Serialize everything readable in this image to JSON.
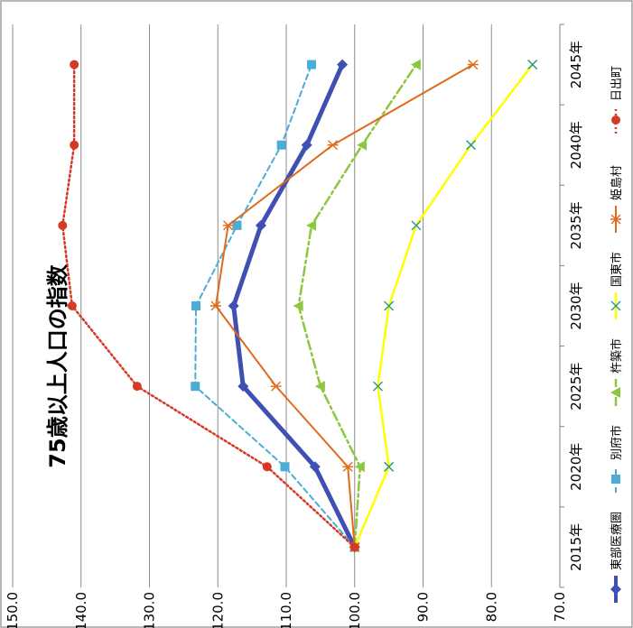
{
  "chart_data": {
    "type": "line",
    "title": "75歳以上人口の指数",
    "categories": [
      "2015年",
      "2020年",
      "2025年",
      "2030年",
      "2035年",
      "2040年",
      "2045年"
    ],
    "ylim": [
      70,
      150
    ],
    "yticks": [
      "70.0",
      "80.0",
      "90.0",
      "100.0",
      "110.0",
      "120.0",
      "130.0",
      "140.0",
      "150.0"
    ],
    "grid": true,
    "legend_position": "bottom",
    "series": [
      {
        "name": "東部医療圏",
        "values": [
          100.0,
          105.8,
          116.3,
          117.7,
          113.7,
          107.0,
          101.8
        ],
        "color": "#3f4fb2",
        "dash": "",
        "width": 5,
        "marker": "diamond"
      },
      {
        "name": "別府市",
        "values": [
          100.0,
          110.2,
          123.3,
          123.2,
          117.2,
          110.7,
          106.3
        ],
        "color": "#4bacd6",
        "dash": "6 4",
        "width": 2,
        "marker": "square"
      },
      {
        "name": "杵築市",
        "values": [
          100.0,
          99.2,
          105.0,
          108.2,
          106.3,
          98.9,
          91.0
        ],
        "color": "#8dc63f",
        "dash": "10 4 3 4",
        "width": 2.5,
        "marker": "triangle"
      },
      {
        "name": "国東市",
        "values": [
          100.0,
          95.0,
          96.6,
          95.0,
          91.0,
          83.0,
          74.0
        ],
        "color": "#ffff00",
        "dash": "",
        "width": 2.5,
        "marker": "x"
      },
      {
        "name": "姫島村",
        "values": [
          100.0,
          101.0,
          111.5,
          120.3,
          118.5,
          103.2,
          82.7
        ],
        "color": "#e06b1c",
        "dash": "",
        "width": 2,
        "marker": "star"
      },
      {
        "name": "日出町",
        "values": [
          100.0,
          112.8,
          131.8,
          141.3,
          142.7,
          141.0,
          141.0
        ],
        "color": "#d63a25",
        "dash": "2 3",
        "width": 2.5,
        "marker": "circle"
      }
    ]
  }
}
